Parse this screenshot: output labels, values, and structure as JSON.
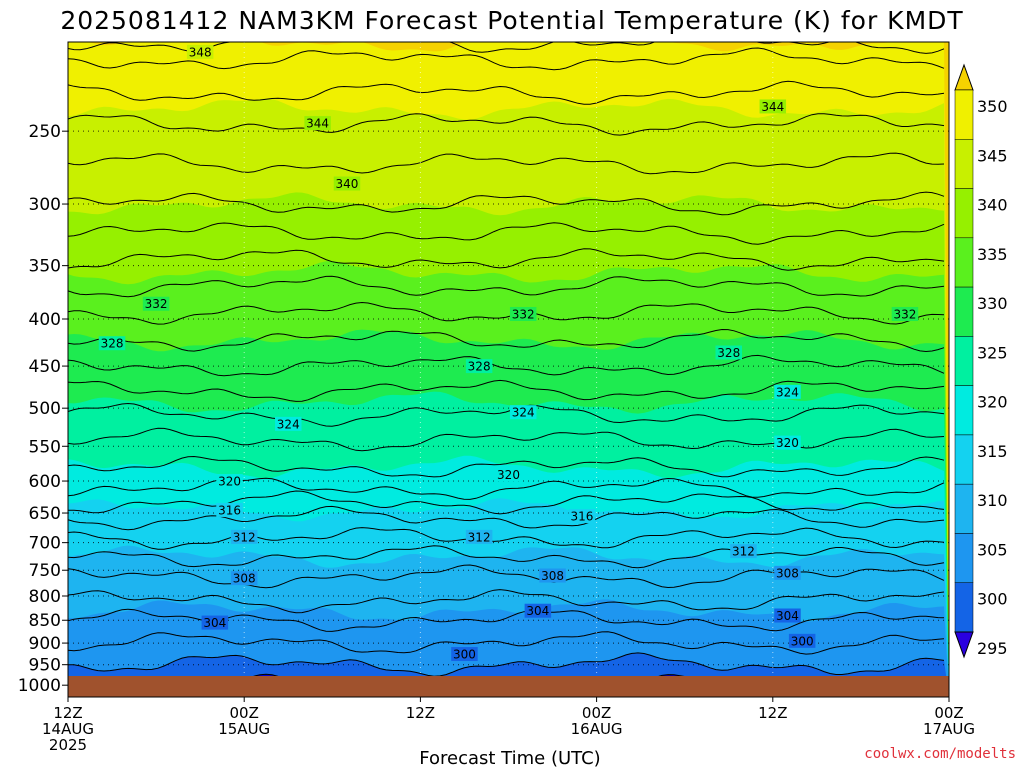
{
  "title": "2025081412 NAM3KM Forecast Potential Temperature (K) for KMDT",
  "credit": "coolwx.com/modelts",
  "colors": {
    "ground": "#a0522d",
    "credit": "#e0303a",
    "bands": [
      "#0000cc",
      "#1464e6",
      "#1e96f0",
      "#1eb4f0",
      "#14d2f0",
      "#00ebe0",
      "#00f0a0",
      "#1eeb50",
      "#5af01e",
      "#96f000",
      "#c8f000",
      "#f0f000",
      "#f5d200"
    ]
  },
  "chart_data": {
    "type": "contour",
    "title": "2025081412 NAM3KM Forecast Potential Temperature (K) for KMDT",
    "xlabel": "Forecast Time (UTC)",
    "ylabel": "",
    "x_ticks": [
      {
        "time_utc": "2025-08-14T12Z",
        "lines": [
          "12Z",
          "14AUG",
          "2025"
        ]
      },
      {
        "time_utc": "2025-08-15T00Z",
        "lines": [
          "00Z",
          "15AUG"
        ]
      },
      {
        "time_utc": "2025-08-15T12Z",
        "lines": [
          "12Z"
        ]
      },
      {
        "time_utc": "2025-08-16T00Z",
        "lines": [
          "00Z",
          "16AUG"
        ]
      },
      {
        "time_utc": "2025-08-16T12Z",
        "lines": [
          "12Z"
        ]
      },
      {
        "time_utc": "2025-08-17T00Z",
        "lines": [
          "00Z",
          "17AUG"
        ]
      }
    ],
    "y_ticks_hpa": [
      250,
      300,
      350,
      400,
      450,
      500,
      550,
      600,
      650,
      700,
      750,
      800,
      850,
      900,
      950,
      1000
    ],
    "y_axis": "pressure (hPa), reversed, logarithmic",
    "colorbar_levels_k": [
      350,
      345,
      340,
      335,
      330,
      325,
      320,
      315,
      310,
      305,
      300,
      295
    ],
    "contour_interval_k": 2,
    "contour_labels": [
      {
        "value": 348,
        "time_utc": "2025-08-14T21Z",
        "p_hpa": 205
      },
      {
        "value": 344,
        "time_utc": "2025-08-15T05Z",
        "p_hpa": 245
      },
      {
        "value": 344,
        "time_utc": "2025-08-16T12Z",
        "p_hpa": 235
      },
      {
        "value": 340,
        "time_utc": "2025-08-15T07Z",
        "p_hpa": 285
      },
      {
        "value": 332,
        "time_utc": "2025-08-14T18Z",
        "p_hpa": 385
      },
      {
        "value": 332,
        "time_utc": "2025-08-15T19Z",
        "p_hpa": 395
      },
      {
        "value": 332,
        "time_utc": "2025-08-16T21Z",
        "p_hpa": 395
      },
      {
        "value": 328,
        "time_upc_note": "",
        "time_utc": "2025-08-14T15Z",
        "p_hpa": 425
      },
      {
        "value": 328,
        "time_utc": "2025-08-15T16Z",
        "p_hpa": 450
      },
      {
        "value": 328,
        "time_utc": "2025-08-16T09Z",
        "p_hpa": 435
      },
      {
        "value": 324,
        "time_utc": "2025-08-16T13Z",
        "p_hpa": 480
      },
      {
        "value": 324,
        "time_utc": "2025-08-15T19Z",
        "p_hpa": 505
      },
      {
        "value": 324,
        "time_utc": "2025-08-15T03Z",
        "p_hpa": 520
      },
      {
        "value": 320,
        "time_utc": "2025-08-16T13Z",
        "p_hpa": 545
      },
      {
        "value": 320,
        "time_utc": "2025-08-15T18Z",
        "p_hpa": 590
      },
      {
        "value": 320,
        "time_utc": "2025-08-14T23Z",
        "p_hpa": 600
      },
      {
        "value": 316,
        "time_utc": "2025-08-14T23Z",
        "p_hpa": 645
      },
      {
        "value": 316,
        "time_utc": "2025-08-15T23Z",
        "p_hpa": 655
      },
      {
        "value": 312,
        "time_utc": "2025-08-15T00Z",
        "p_hpa": 690
      },
      {
        "value": 312,
        "time_utc": "2025-08-15T16Z",
        "p_hpa": 690
      },
      {
        "value": 312,
        "time_utc": "2025-08-16T10Z",
        "p_hpa": 715
      },
      {
        "value": 308,
        "time_utc": "2025-08-15T00Z",
        "p_hpa": 765
      },
      {
        "value": 308,
        "time_utc": "2025-08-15T21Z",
        "p_hpa": 760
      },
      {
        "value": 308,
        "time_utc": "2025-08-16T13Z",
        "p_hpa": 755
      },
      {
        "value": 304,
        "time_utc": "2025-08-14T22Z",
        "p_hpa": 855
      },
      {
        "value": 304,
        "time_utc": "2025-08-15T20Z",
        "p_hpa": 830
      },
      {
        "value": 304,
        "time_utc": "2025-08-16T13Z",
        "p_hpa": 840
      },
      {
        "value": 300,
        "time_utc": "2025-08-15T15Z",
        "p_hpa": 925
      },
      {
        "value": 300,
        "time_utc": "2025-08-16T14Z",
        "p_hpa": 895
      }
    ],
    "grid": true,
    "colorbar_position": "right"
  }
}
